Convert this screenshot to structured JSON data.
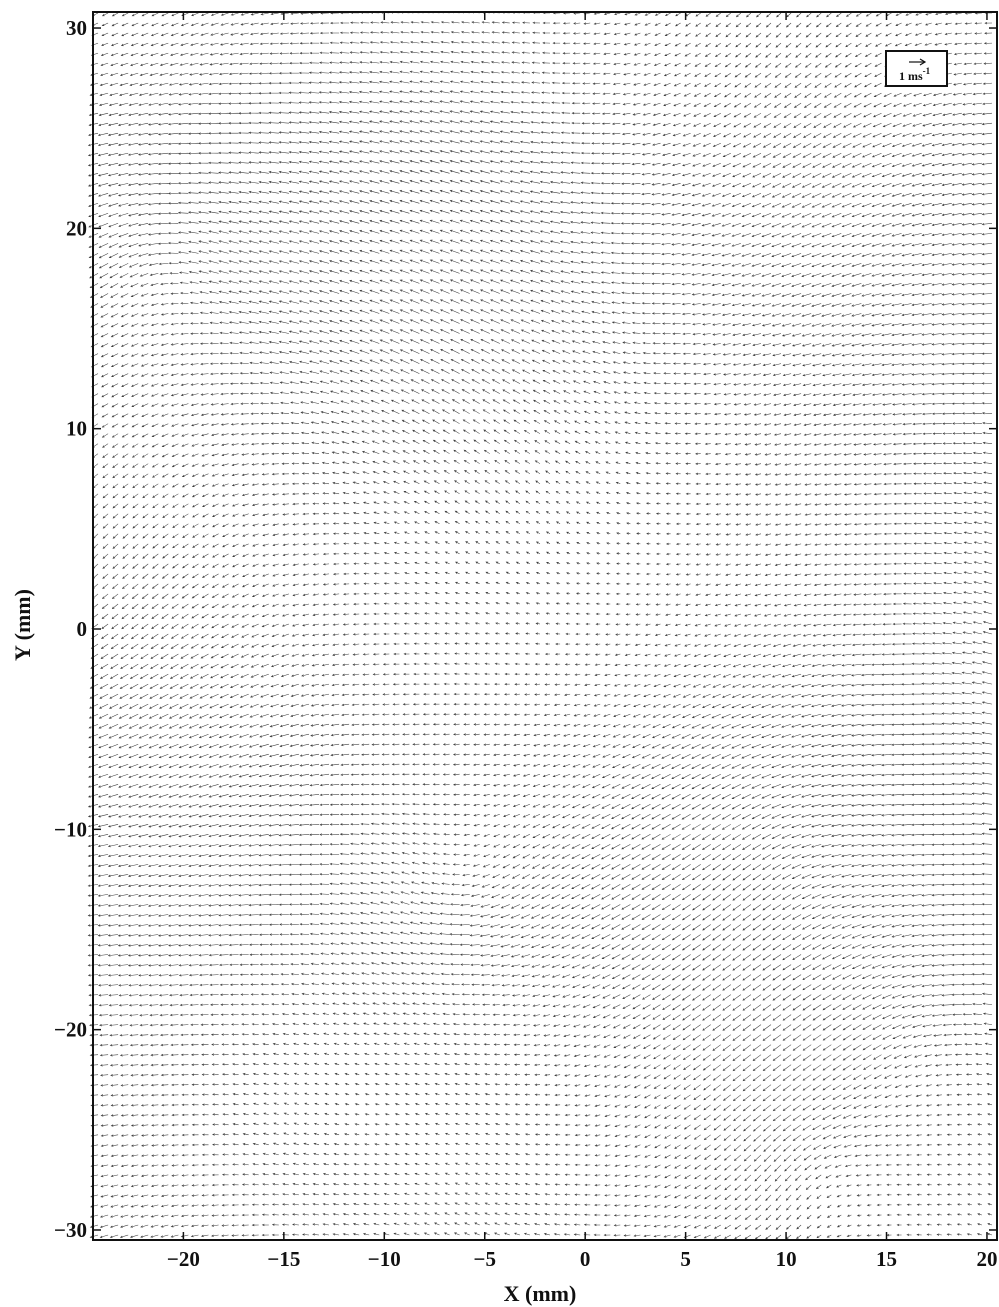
{
  "chart_data": {
    "type": "quiver",
    "xlabel": "X (mm)",
    "ylabel": "Y (mm)",
    "xlim": [
      -24.5,
      20.5
    ],
    "ylim": [
      -30.5,
      30.8
    ],
    "xticks": [
      -20,
      -15,
      -10,
      -5,
      0,
      5,
      10,
      15,
      20
    ],
    "yticks": [
      -30,
      -20,
      -10,
      0,
      10,
      20,
      30
    ],
    "x_tick_labels": [
      "−20",
      "−15",
      "−10",
      "−5",
      "0",
      "5",
      "10",
      "15",
      "20"
    ],
    "y_tick_labels": [
      "−30",
      "−20",
      "−10",
      "0",
      "10",
      "20",
      "30"
    ],
    "grid": false,
    "arrow_color": "#1a1a1a",
    "legend": {
      "position": "top-right",
      "label": "1 ms",
      "label_exponent": "-1",
      "reference_vector_ms": 1
    },
    "grid_spacing_mm": 0.5,
    "background_flow": {
      "u": -1.1,
      "v": -0.05
    },
    "vortices": [
      {
        "x": -21,
        "y": 19,
        "circulation": 12,
        "core_mm": 2.5
      },
      {
        "x": -6,
        "y": -13,
        "circulation": -10,
        "core_mm": 2.5
      },
      {
        "x": 12,
        "y": -27,
        "circulation": 10,
        "core_mm": 2.5
      },
      {
        "x": 10.5,
        "y": -11,
        "circulation": 7,
        "core_mm": 2.5
      },
      {
        "x": -13,
        "y": -25,
        "circulation": -6,
        "core_mm": 3
      },
      {
        "x": 17,
        "y": -20,
        "circulation": 8,
        "core_mm": 3
      }
    ]
  }
}
